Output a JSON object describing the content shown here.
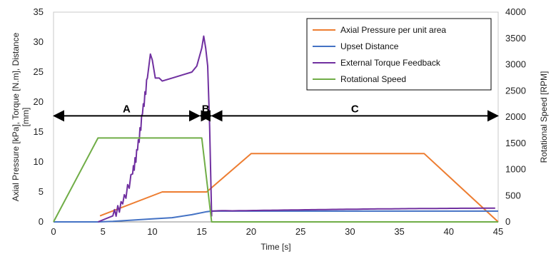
{
  "chart_data": {
    "type": "line",
    "xlabel": "Time [s]",
    "ylabel_left": "Axial Pressure [kPa], Torque [N.m], Distance [mm]",
    "ylabel_right": "Rotational Speed [RPM]",
    "xlim": [
      0,
      45
    ],
    "ylim_left": [
      0,
      35
    ],
    "ylim_right": [
      0,
      4000
    ],
    "x_ticks": [
      0,
      5,
      10,
      15,
      20,
      25,
      30,
      35,
      40,
      45
    ],
    "y_left_ticks": [
      0,
      5,
      10,
      15,
      20,
      25,
      30,
      35
    ],
    "y_right_ticks": [
      0,
      500,
      1000,
      1500,
      2000,
      2500,
      3000,
      3500,
      4000
    ],
    "grid": false,
    "legend_position": "top-right",
    "series": [
      {
        "name": "Axial Pressure per unit area",
        "axis": "left",
        "color": "#ED7D31",
        "x": [
          4.7,
          5.0,
          11.0,
          15.5,
          20.0,
          37.5,
          45.0
        ],
        "y": [
          1.0,
          1.2,
          5.0,
          5.0,
          11.4,
          11.4,
          0.0
        ]
      },
      {
        "name": "Upset Distance",
        "axis": "left",
        "color": "#4472C4",
        "x": [
          0,
          4.5,
          6.0,
          8.0,
          10.0,
          12.0,
          14.0,
          15.5,
          16.0,
          45.0
        ],
        "y": [
          0,
          0,
          0.1,
          0.3,
          0.5,
          0.7,
          1.2,
          1.7,
          1.8,
          1.8
        ]
      },
      {
        "name": "External Torque Feedback",
        "axis": "left",
        "color": "#7030A0",
        "x": [
          4.5,
          6.0,
          7.0,
          8.0,
          8.5,
          9.0,
          9.5,
          9.8,
          10.0,
          10.3,
          10.7,
          11.0,
          12.0,
          13.0,
          14.0,
          14.5,
          15.0,
          15.2,
          15.4,
          15.6,
          15.8,
          16.0
        ],
        "y": [
          0,
          1,
          3,
          8,
          12,
          18,
          24,
          28,
          27,
          24,
          24,
          23.5,
          24,
          24.5,
          25,
          26,
          29,
          31,
          29,
          26,
          16,
          1
        ]
      },
      {
        "name": "Rotational Speed",
        "axis": "right",
        "color": "#70AD47",
        "x": [
          0,
          4.5,
          15.0,
          16.0,
          45.0
        ],
        "y": [
          0,
          1600,
          1600,
          0,
          0
        ]
      }
    ],
    "annotations": [
      {
        "text": "A",
        "x_start": 0,
        "x_end": 14.8,
        "y": 17.7
      },
      {
        "text": "B",
        "x_start": 14.8,
        "x_end": 16.0,
        "y": 17.7
      },
      {
        "text": "C",
        "x_start": 16.0,
        "x_end": 45.0,
        "y": 17.7
      }
    ]
  }
}
